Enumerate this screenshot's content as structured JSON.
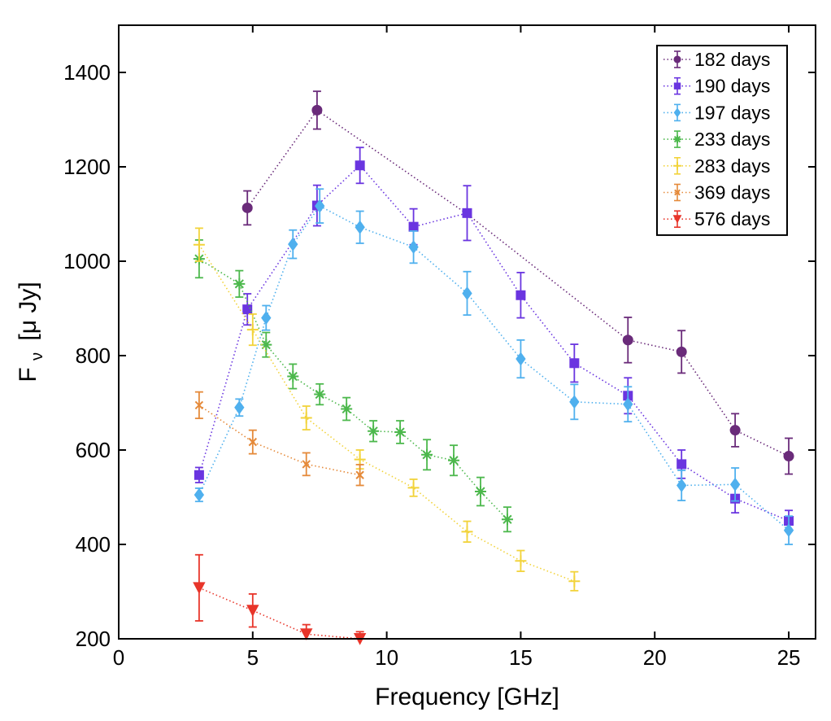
{
  "chart_data": {
    "type": "scatter",
    "title": "",
    "xlabel": "Frequency [GHz]",
    "ylabel_main": "F",
    "ylabel_sub": "ν",
    "ylabel_unit": "[μ Jy]",
    "xlim": [
      0,
      26
    ],
    "ylim": [
      200,
      1500
    ],
    "xticks": [
      0,
      5,
      10,
      15,
      20,
      25
    ],
    "yticks": [
      200,
      400,
      600,
      800,
      1000,
      1200,
      1400
    ],
    "grid": false,
    "legend_position": "top-right",
    "series": [
      {
        "name": "182 days",
        "color": "#6a2b7a",
        "marker": "circle",
        "points": [
          {
            "x": 4.8,
            "y": 1113,
            "err": 36
          },
          {
            "x": 7.4,
            "y": 1320,
            "err": 40
          },
          {
            "x": 13.0,
            "y": 1100,
            "err": 0
          },
          {
            "x": 19.0,
            "y": 833,
            "err": 48
          },
          {
            "x": 21.0,
            "y": 808,
            "err": 45
          },
          {
            "x": 23.0,
            "y": 642,
            "err": 35
          },
          {
            "x": 25.0,
            "y": 587,
            "err": 38
          }
        ]
      },
      {
        "name": "190 days",
        "color": "#6a35e0",
        "marker": "square",
        "points": [
          {
            "x": 3.0,
            "y": 547,
            "err": 16
          },
          {
            "x": 4.8,
            "y": 898,
            "err": 33
          },
          {
            "x": 7.4,
            "y": 1118,
            "err": 43
          },
          {
            "x": 9.0,
            "y": 1203,
            "err": 38
          },
          {
            "x": 11.0,
            "y": 1073,
            "err": 38
          },
          {
            "x": 13.0,
            "y": 1102,
            "err": 58
          },
          {
            "x": 15.0,
            "y": 928,
            "err": 48
          },
          {
            "x": 17.0,
            "y": 784,
            "err": 40
          },
          {
            "x": 19.0,
            "y": 715,
            "err": 38
          },
          {
            "x": 21.0,
            "y": 570,
            "err": 30
          },
          {
            "x": 23.0,
            "y": 497,
            "err": 30
          },
          {
            "x": 25.0,
            "y": 450,
            "err": 22
          }
        ]
      },
      {
        "name": "197 days",
        "color": "#4fb0ee",
        "marker": "diamond",
        "points": [
          {
            "x": 3.0,
            "y": 505,
            "err": 14
          },
          {
            "x": 4.5,
            "y": 690,
            "err": 18
          },
          {
            "x": 5.5,
            "y": 880,
            "err": 26
          },
          {
            "x": 6.5,
            "y": 1036,
            "err": 30
          },
          {
            "x": 7.5,
            "y": 1117,
            "err": 36
          },
          {
            "x": 9.0,
            "y": 1072,
            "err": 34
          },
          {
            "x": 11.0,
            "y": 1030,
            "err": 34
          },
          {
            "x": 13.0,
            "y": 932,
            "err": 46
          },
          {
            "x": 15.0,
            "y": 793,
            "err": 40
          },
          {
            "x": 17.0,
            "y": 702,
            "err": 37
          },
          {
            "x": 19.0,
            "y": 697,
            "err": 37
          },
          {
            "x": 21.0,
            "y": 525,
            "err": 32
          },
          {
            "x": 23.0,
            "y": 527,
            "err": 35
          },
          {
            "x": 25.0,
            "y": 430,
            "err": 30
          }
        ]
      },
      {
        "name": "233 days",
        "color": "#4cb84c",
        "marker": "asterisk",
        "points": [
          {
            "x": 3.0,
            "y": 1005,
            "err": 40
          },
          {
            "x": 4.5,
            "y": 952,
            "err": 28
          },
          {
            "x": 5.5,
            "y": 823,
            "err": 26
          },
          {
            "x": 6.5,
            "y": 756,
            "err": 26
          },
          {
            "x": 7.5,
            "y": 718,
            "err": 22
          },
          {
            "x": 8.5,
            "y": 687,
            "err": 24
          },
          {
            "x": 9.5,
            "y": 640,
            "err": 22
          },
          {
            "x": 10.5,
            "y": 638,
            "err": 24
          },
          {
            "x": 11.5,
            "y": 590,
            "err": 32
          },
          {
            "x": 12.5,
            "y": 578,
            "err": 32
          },
          {
            "x": 13.5,
            "y": 512,
            "err": 30
          },
          {
            "x": 14.5,
            "y": 453,
            "err": 26
          }
        ]
      },
      {
        "name": "283 days",
        "color": "#f2d33a",
        "marker": "plus",
        "points": [
          {
            "x": 3.0,
            "y": 1035,
            "err": 35
          },
          {
            "x": 5.0,
            "y": 855,
            "err": 33
          },
          {
            "x": 7.0,
            "y": 668,
            "err": 25
          },
          {
            "x": 9.0,
            "y": 580,
            "err": 20
          },
          {
            "x": 11.0,
            "y": 520,
            "err": 18
          },
          {
            "x": 13.0,
            "y": 427,
            "err": 22
          },
          {
            "x": 15.0,
            "y": 365,
            "err": 22
          },
          {
            "x": 17.0,
            "y": 322,
            "err": 20
          }
        ]
      },
      {
        "name": "369 days",
        "color": "#e58a3a",
        "marker": "cross",
        "points": [
          {
            "x": 3.0,
            "y": 695,
            "err": 28
          },
          {
            "x": 5.0,
            "y": 617,
            "err": 25
          },
          {
            "x": 7.0,
            "y": 570,
            "err": 24
          },
          {
            "x": 9.0,
            "y": 547,
            "err": 22
          }
        ]
      },
      {
        "name": "576 days",
        "color": "#e8352a",
        "marker": "triangle-down",
        "points": [
          {
            "x": 3.0,
            "y": 308,
            "err": 70
          },
          {
            "x": 5.0,
            "y": 260,
            "err": 35
          },
          {
            "x": 7.0,
            "y": 210,
            "err": 20
          },
          {
            "x": 9.0,
            "y": 200,
            "err": 15
          }
        ]
      }
    ]
  }
}
